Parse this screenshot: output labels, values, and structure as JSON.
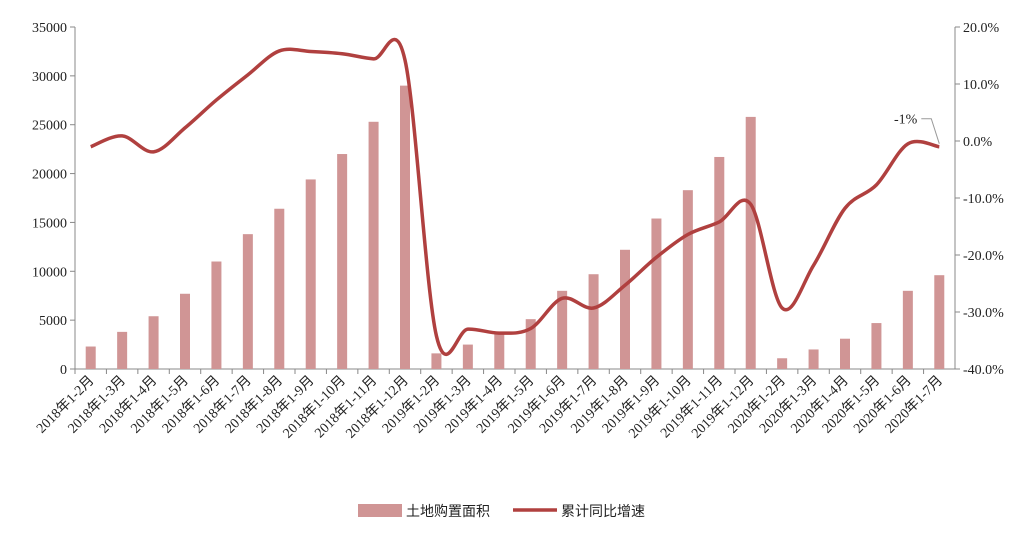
{
  "chart_data": {
    "type": "bar-line",
    "categories": [
      "2018年1-2月",
      "2018年1-3月",
      "2018年1-4月",
      "2018年1-5月",
      "2018年1-6月",
      "2018年1-7月",
      "2018年1-8月",
      "2018年1-9月",
      "2018年1-10月",
      "2018年1-11月",
      "2018年1-12月",
      "2019年1-2月",
      "2019年1-3月",
      "2019年1-4月",
      "2019年1-5月",
      "2019年1-6月",
      "2019年1-7月",
      "2019年1-8月",
      "2019年1-9月",
      "2019年1-10月",
      "2019年1-11月",
      "2019年1-12月",
      "2020年1-2月",
      "2020年1-3月",
      "2020年1-4月",
      "2020年1-5月",
      "2020年1-6月",
      "2020年1-7月"
    ],
    "series": [
      {
        "name": "土地购置面积",
        "type": "bar",
        "color": "#d09595",
        "values": [
          2300,
          3800,
          5400,
          7700,
          11000,
          13800,
          16400,
          19400,
          22000,
          25300,
          29000,
          1600,
          2500,
          3600,
          5100,
          8000,
          9700,
          12200,
          15400,
          18300,
          21700,
          25800,
          1100,
          2000,
          3100,
          4700,
          8000,
          9600
        ]
      },
      {
        "name": "累计同比增速",
        "type": "line",
        "axis": "y2",
        "color": "#b0403f",
        "values": [
          -1.0,
          0.9,
          -1.9,
          2.3,
          7.2,
          11.6,
          15.8,
          15.7,
          15.3,
          14.4,
          14.2,
          -34.2,
          -33.0,
          -33.7,
          -32.9,
          -27.6,
          -29.3,
          -25.3,
          -20.4,
          -16.4,
          -14.2,
          -11.1,
          -29.3,
          -21.8,
          -11.8,
          -7.7,
          -0.5,
          -1
        ],
        "value_labels": [
          null,
          null,
          null,
          null,
          null,
          null,
          null,
          null,
          null,
          null,
          null,
          null,
          null,
          null,
          null,
          null,
          null,
          null,
          null,
          null,
          null,
          null,
          null,
          null,
          null,
          null,
          null,
          "-1%"
        ]
      }
    ],
    "ylim": [
      0,
      35000
    ],
    "yticks": [
      0,
      5000,
      10000,
      15000,
      20000,
      25000,
      30000,
      35000
    ],
    "y2lim": [
      -40,
      20
    ],
    "y2ticks": [
      {
        "value": -40,
        "label": "-40.0%"
      },
      {
        "value": -30,
        "label": "-30.0%"
      },
      {
        "value": -20,
        "label": "-20.0%"
      },
      {
        "value": -10,
        "label": "-10.0%"
      },
      {
        "value": 0,
        "label": "0.0%"
      },
      {
        "value": 10,
        "label": "10.0%"
      },
      {
        "value": 20,
        "label": "20.0%"
      }
    ],
    "legend": "bottom"
  }
}
